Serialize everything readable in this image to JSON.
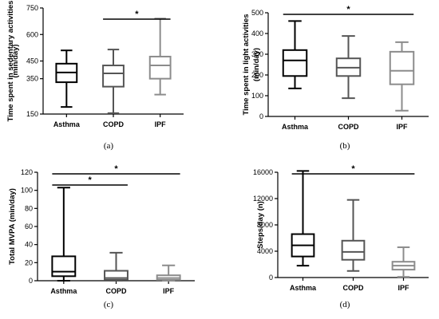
{
  "chart_data": [
    {
      "type": "boxplot",
      "panel_caption": "(a)",
      "ylabel_lines": [
        "Time spent in sedentary activities",
        "(min/day)"
      ],
      "ylim": [
        150,
        750
      ],
      "yticks": [
        "150",
        "350",
        "450",
        "600",
        "750"
      ],
      "ytick_values": [
        150,
        350,
        450,
        600,
        750
      ],
      "categories": [
        "Asthma",
        "COPD",
        "IPF"
      ],
      "boxes": [
        {
          "min": 190,
          "q1": 330,
          "median": 385,
          "q3": 435,
          "max": 510,
          "color": "#000000"
        },
        {
          "min": 155,
          "q1": 305,
          "median": 380,
          "q3": 425,
          "max": 515,
          "color": "#555555"
        },
        {
          "min": 260,
          "q1": 350,
          "median": 425,
          "q3": 475,
          "max": 690,
          "color": "#8c8c8c"
        }
      ],
      "significance": [
        {
          "from": 1,
          "to": 2,
          "label": "*"
        }
      ]
    },
    {
      "type": "boxplot",
      "panel_caption": "(b)",
      "ylabel_lines": [
        "Time spent in light activities",
        "(min/day)"
      ],
      "ylim": [
        0,
        500
      ],
      "yticks": [
        "0",
        "100",
        "200",
        "300",
        "400",
        "500"
      ],
      "ytick_values": [
        0,
        100,
        200,
        300,
        400,
        500
      ],
      "categories": [
        "Asthma",
        "COPD",
        "IPF"
      ],
      "boxes": [
        {
          "min": 135,
          "q1": 195,
          "median": 270,
          "q3": 320,
          "max": 460,
          "color": "#000000"
        },
        {
          "min": 88,
          "q1": 195,
          "median": 235,
          "q3": 280,
          "max": 388,
          "color": "#555555"
        },
        {
          "min": 28,
          "q1": 155,
          "median": 220,
          "q3": 312,
          "max": 358,
          "color": "#8c8c8c"
        }
      ],
      "significance": [
        {
          "from": 0,
          "to": 2,
          "label": "*"
        }
      ]
    },
    {
      "type": "boxplot",
      "panel_caption": "(c)",
      "ylabel_lines": [
        "Total MVPA (min/day)"
      ],
      "ylim": [
        0,
        120
      ],
      "yticks": [
        "0",
        "20",
        "40",
        "60",
        "80",
        "100",
        "120"
      ],
      "ytick_values": [
        0,
        20,
        40,
        60,
        80,
        100,
        120
      ],
      "categories": [
        "Asthma",
        "COPD",
        "IPF"
      ],
      "boxes": [
        {
          "min": 0,
          "q1": 5,
          "median": 10,
          "q3": 27,
          "max": 103,
          "color": "#000000"
        },
        {
          "min": 0,
          "q1": 1,
          "median": 3,
          "q3": 11,
          "max": 31,
          "color": "#555555"
        },
        {
          "min": 0,
          "q1": 1,
          "median": 3,
          "q3": 6,
          "max": 17,
          "color": "#8c8c8c"
        }
      ],
      "significance": [
        {
          "from": 0,
          "to": 1,
          "label": "*"
        },
        {
          "from": 0,
          "to": 2,
          "label": "*"
        }
      ]
    },
    {
      "type": "boxplot",
      "panel_caption": "(d)",
      "ylabel_lines": [
        "Steps/day (n)"
      ],
      "ylim": [
        0,
        16000
      ],
      "yticks": [
        "0",
        "4000",
        "8000",
        "12000",
        "16000"
      ],
      "ytick_values": [
        0,
        4000,
        8000,
        12000,
        16000
      ],
      "categories": [
        "Asthma",
        "COPD",
        "IPF"
      ],
      "boxes": [
        {
          "min": 1800,
          "q1": 3200,
          "median": 4900,
          "q3": 6600,
          "max": 16200,
          "color": "#000000"
        },
        {
          "min": 1000,
          "q1": 2700,
          "median": 3900,
          "q3": 5600,
          "max": 11800,
          "color": "#555555"
        },
        {
          "min": 100,
          "q1": 1200,
          "median": 1800,
          "q3": 2400,
          "max": 4600,
          "color": "#8c8c8c"
        }
      ],
      "significance": [
        {
          "from": 0,
          "to": 2,
          "label": "*"
        }
      ]
    }
  ]
}
